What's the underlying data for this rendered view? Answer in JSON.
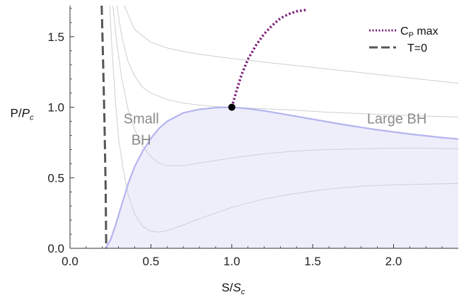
{
  "chart_data": {
    "type": "line",
    "xlabel": {
      "main": "S/",
      "italic": "S",
      "sub": "c"
    },
    "ylabel": {
      "main": "P/",
      "italic": "P",
      "sub": "c"
    },
    "xlim": [
      0.0,
      2.4
    ],
    "ylim": [
      0.0,
      1.72
    ],
    "x_ticks": [
      0.0,
      0.5,
      1.0,
      1.5,
      2.0
    ],
    "x_tick_labels": [
      "0.0",
      "0.5",
      "1.0",
      "1.5",
      "2.0"
    ],
    "y_ticks": [
      0.0,
      0.5,
      1.0,
      1.5
    ],
    "y_tick_labels": [
      "0.0",
      "0.5",
      "1.0",
      "1.5"
    ],
    "grid": false,
    "legend_position": "top-right",
    "legend": [
      {
        "id": "cp",
        "main": "C",
        "sub": "P",
        "rest": " max",
        "style": "dotted",
        "color": "#7a1f7a"
      },
      {
        "id": "t0",
        "main": "T=0",
        "style": "dashed",
        "color": "#555555"
      }
    ],
    "region_labels": [
      {
        "lines": [
          "Small",
          "BH"
        ],
        "x": 0.44,
        "y": 0.92
      },
      {
        "lines": [
          "Large BH"
        ],
        "x": 2.02,
        "y": 0.92
      }
    ],
    "colors": {
      "coexistence_line": "#b4b4ef",
      "coexistence_fill": "#eeeefb",
      "isotherm": "#cfcfcf",
      "cp_max": "#7a1f7a",
      "t_zero": "#555555",
      "critical_point": "#000000"
    },
    "series": [
      {
        "id": "t_zero",
        "style": "dashed",
        "x": [
          0.196,
          0.205,
          0.213,
          0.22,
          0.224
        ],
        "y": [
          1.72,
          1.3,
          0.9,
          0.45,
          0.0
        ]
      },
      {
        "id": "coexistence",
        "style": "solid",
        "x": [
          0.22,
          0.25,
          0.28,
          0.32,
          0.36,
          0.4,
          0.45,
          0.5,
          0.55,
          0.6,
          0.65,
          0.7,
          0.8,
          0.9,
          1.0,
          1.1,
          1.2,
          1.3,
          1.5,
          1.7,
          1.9,
          2.1,
          2.3,
          2.4
        ],
        "y": [
          0.0,
          0.06,
          0.16,
          0.31,
          0.46,
          0.58,
          0.69,
          0.78,
          0.85,
          0.9,
          0.93,
          0.96,
          0.985,
          0.997,
          1.0,
          0.99,
          0.975,
          0.955,
          0.915,
          0.875,
          0.84,
          0.81,
          0.785,
          0.775
        ]
      },
      {
        "id": "cp_max",
        "style": "dotted",
        "x": [
          1.0,
          1.03,
          1.06,
          1.1,
          1.15,
          1.2,
          1.25,
          1.3,
          1.35,
          1.4,
          1.46
        ],
        "y": [
          1.0,
          1.12,
          1.23,
          1.34,
          1.44,
          1.52,
          1.58,
          1.63,
          1.66,
          1.68,
          1.69
        ]
      },
      {
        "id": "iso_1",
        "style": "solid",
        "x": [
          0.335,
          0.4,
          0.5,
          0.6,
          0.7,
          0.8,
          1.0,
          1.2,
          1.4,
          1.6,
          1.8,
          2.0,
          2.2,
          2.4
        ],
        "y": [
          1.72,
          1.55,
          1.46,
          1.42,
          1.395,
          1.375,
          1.345,
          1.32,
          1.295,
          1.27,
          1.245,
          1.22,
          1.195,
          1.17
        ]
      },
      {
        "id": "iso_2",
        "style": "solid",
        "x": [
          0.29,
          0.32,
          0.36,
          0.4,
          0.45,
          0.5,
          0.6,
          0.7,
          0.8,
          0.9,
          1.0,
          1.2,
          1.4,
          1.6,
          1.8,
          2.0,
          2.2,
          2.4
        ],
        "y": [
          1.72,
          1.5,
          1.32,
          1.22,
          1.14,
          1.1,
          1.055,
          1.03,
          1.015,
          1.005,
          1.0,
          0.99,
          0.978,
          0.965,
          0.955,
          0.945,
          0.937,
          0.93
        ]
      },
      {
        "id": "iso_3",
        "style": "solid",
        "x": [
          0.265,
          0.29,
          0.32,
          0.36,
          0.4,
          0.45,
          0.5,
          0.55,
          0.6,
          0.7,
          0.8,
          1.0,
          1.2,
          1.4,
          1.6,
          1.8,
          2.0,
          2.2,
          2.4
        ],
        "y": [
          1.72,
          1.45,
          1.2,
          0.98,
          0.84,
          0.72,
          0.65,
          0.605,
          0.585,
          0.585,
          0.605,
          0.64,
          0.67,
          0.69,
          0.7,
          0.705,
          0.71,
          0.71,
          0.705
        ]
      },
      {
        "id": "iso_4",
        "style": "solid",
        "x": [
          0.245,
          0.26,
          0.28,
          0.3,
          0.33,
          0.36,
          0.4,
          0.45,
          0.5,
          0.55,
          0.6,
          0.7,
          0.8,
          1.0,
          1.2,
          1.4,
          1.6,
          1.8,
          2.0,
          2.2,
          2.4
        ],
        "y": [
          1.72,
          1.4,
          1.05,
          0.78,
          0.55,
          0.38,
          0.24,
          0.155,
          0.12,
          0.115,
          0.125,
          0.165,
          0.21,
          0.29,
          0.35,
          0.39,
          0.42,
          0.44,
          0.45,
          0.455,
          0.46
        ]
      }
    ],
    "critical_point": {
      "x": 1.0,
      "y": 1.0
    }
  }
}
